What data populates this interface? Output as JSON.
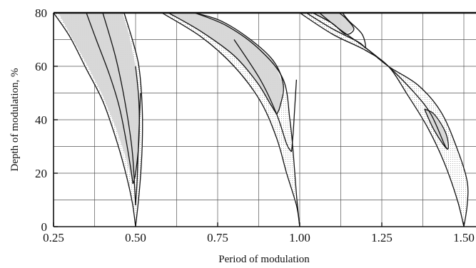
{
  "chart_data": {
    "type": "area",
    "title": "",
    "xlabel": "Period of modulation",
    "ylabel": "Depth of modulation, %",
    "xlim": [
      0.25,
      1.5
    ],
    "ylim": [
      0,
      80
    ],
    "x_ticks": [
      0.25,
      0.5,
      0.75,
      1.0,
      1.25,
      1.5
    ],
    "x_tick_labels": [
      "0.25",
      "0.50",
      "0.75",
      "1.00",
      "1.25",
      "1.50"
    ],
    "y_ticks": [
      0,
      20,
      40,
      60,
      80
    ],
    "y_tick_labels": [
      "0",
      "20",
      "40",
      "60",
      "80"
    ],
    "grid": true,
    "colors": {
      "shaded": "#d6d6d6",
      "dotted": "#f1f1f1",
      "line": "#111111"
    },
    "regions": [
      {
        "shade": "light",
        "points": [
          [
            0.25,
            80
          ],
          [
            0.3,
            71
          ],
          [
            0.35,
            59
          ],
          [
            0.4,
            47
          ],
          [
            0.44,
            33
          ],
          [
            0.47,
            20
          ],
          [
            0.49,
            9
          ],
          [
            0.5,
            0
          ],
          [
            0.512,
            14
          ],
          [
            0.52,
            30
          ],
          [
            0.52,
            45
          ],
          [
            0.51,
            60
          ],
          [
            0.49,
            70
          ],
          [
            0.465,
            80
          ]
        ]
      },
      {
        "shade": "dark",
        "points": [
          [
            0.265,
            80
          ],
          [
            0.3,
            72
          ],
          [
            0.35,
            61
          ],
          [
            0.4,
            49
          ],
          [
            0.44,
            37
          ],
          [
            0.47,
            26
          ],
          [
            0.485,
            19
          ],
          [
            0.492,
            16
          ],
          [
            0.5,
            20
          ],
          [
            0.51,
            32
          ],
          [
            0.51,
            47
          ],
          [
            0.5,
            60
          ],
          [
            0.48,
            72
          ],
          [
            0.46,
            80
          ]
        ]
      },
      {
        "shade": "light",
        "points": [
          [
            0.58,
            80
          ],
          [
            0.7,
            71
          ],
          [
            0.8,
            60
          ],
          [
            0.88,
            47
          ],
          [
            0.93,
            33
          ],
          [
            0.96,
            20
          ],
          [
            0.99,
            8
          ],
          [
            1.0,
            0
          ],
          [
            0.99,
            12
          ],
          [
            0.98,
            28
          ],
          [
            0.97,
            40
          ],
          [
            0.95,
            55
          ],
          [
            0.88,
            66
          ],
          [
            0.78,
            75
          ],
          [
            0.68,
            80
          ]
        ]
      },
      {
        "shade": "dark",
        "points": [
          [
            0.6,
            80
          ],
          [
            0.7,
            73
          ],
          [
            0.8,
            64
          ],
          [
            0.87,
            54
          ],
          [
            0.91,
            46
          ],
          [
            0.93,
            42
          ],
          [
            0.94,
            45
          ],
          [
            0.95,
            53
          ],
          [
            0.92,
            62
          ],
          [
            0.85,
            70
          ],
          [
            0.76,
            77
          ],
          [
            0.68,
            80
          ]
        ]
      },
      {
        "shade": "light",
        "points": [
          [
            1.0,
            80
          ],
          [
            1.1,
            72
          ],
          [
            1.2,
            66
          ],
          [
            1.27,
            60
          ],
          [
            1.33,
            49
          ],
          [
            1.39,
            37
          ],
          [
            1.44,
            24
          ],
          [
            1.48,
            10
          ],
          [
            1.5,
            0
          ],
          [
            1.51,
            8
          ],
          [
            1.51,
            17
          ],
          [
            1.48,
            29
          ],
          [
            1.43,
            43
          ],
          [
            1.36,
            53
          ],
          [
            1.27,
            60
          ],
          [
            1.2,
            67
          ],
          [
            1.12,
            74
          ],
          [
            1.06,
            80
          ]
        ]
      },
      {
        "shade": "dark",
        "points": [
          [
            1.04,
            80
          ],
          [
            1.1,
            76
          ],
          [
            1.14,
            72
          ],
          [
            1.165,
            74
          ],
          [
            1.14,
            78
          ],
          [
            1.12,
            80
          ]
        ]
      },
      {
        "shade": "dark",
        "points": [
          [
            1.38,
            44
          ],
          [
            1.41,
            36
          ],
          [
            1.45,
            29
          ],
          [
            1.445,
            35
          ],
          [
            1.41,
            42
          ]
        ]
      }
    ],
    "curves": [
      {
        "points": [
          [
            0.25,
            80
          ],
          [
            0.3,
            71
          ],
          [
            0.35,
            59
          ],
          [
            0.4,
            47
          ],
          [
            0.44,
            33
          ],
          [
            0.47,
            20
          ],
          [
            0.49,
            9
          ],
          [
            0.5,
            0
          ]
        ]
      },
      {
        "points": [
          [
            0.465,
            80
          ],
          [
            0.49,
            70
          ],
          [
            0.51,
            60
          ],
          [
            0.52,
            45
          ],
          [
            0.52,
            30
          ],
          [
            0.512,
            14
          ],
          [
            0.5,
            0
          ]
        ]
      },
      {
        "points": [
          [
            0.35,
            80
          ],
          [
            0.38,
            70
          ],
          [
            0.42,
            57
          ],
          [
            0.45,
            45
          ],
          [
            0.47,
            33
          ],
          [
            0.485,
            22
          ],
          [
            0.492,
            16
          ]
        ]
      },
      {
        "points": [
          [
            0.492,
            16
          ],
          [
            0.5,
            20
          ],
          [
            0.51,
            32
          ],
          [
            0.51,
            47
          ],
          [
            0.5,
            60
          ]
        ]
      },
      {
        "points": [
          [
            0.4,
            80
          ],
          [
            0.44,
            63
          ],
          [
            0.47,
            45
          ],
          [
            0.49,
            28
          ],
          [
            0.5,
            8
          ]
        ]
      },
      {
        "points": [
          [
            0.5,
            8
          ],
          [
            0.505,
            18
          ],
          [
            0.51,
            35
          ],
          [
            0.515,
            50
          ]
        ]
      },
      {
        "points": [
          [
            0.58,
            80
          ],
          [
            0.7,
            71
          ],
          [
            0.8,
            60
          ],
          [
            0.88,
            47
          ],
          [
            0.93,
            33
          ],
          [
            0.96,
            20
          ],
          [
            0.99,
            8
          ],
          [
            1.0,
            0
          ]
        ]
      },
      {
        "points": [
          [
            1.0,
            0
          ],
          [
            0.99,
            12
          ],
          [
            0.98,
            28
          ],
          [
            0.97,
            40
          ],
          [
            0.95,
            55
          ],
          [
            0.88,
            66
          ],
          [
            0.78,
            75
          ],
          [
            0.68,
            80
          ]
        ]
      },
      {
        "points": [
          [
            0.6,
            80
          ],
          [
            0.7,
            73
          ],
          [
            0.8,
            64
          ],
          [
            0.87,
            54
          ],
          [
            0.91,
            46
          ],
          [
            0.93,
            42
          ]
        ]
      },
      {
        "points": [
          [
            0.93,
            42
          ],
          [
            0.94,
            45
          ],
          [
            0.95,
            53
          ],
          [
            0.92,
            62
          ],
          [
            0.85,
            70
          ],
          [
            0.76,
            77
          ],
          [
            0.68,
            80
          ]
        ]
      },
      {
        "points": [
          [
            0.8,
            70
          ],
          [
            0.88,
            55
          ],
          [
            0.93,
            42
          ],
          [
            0.96,
            31
          ],
          [
            0.975,
            28
          ]
        ]
      },
      {
        "points": [
          [
            0.975,
            28
          ],
          [
            0.98,
            35
          ],
          [
            0.985,
            45
          ],
          [
            0.99,
            55
          ]
        ]
      },
      {
        "points": [
          [
            1.0,
            80
          ],
          [
            1.1,
            72
          ],
          [
            1.2,
            66
          ],
          [
            1.27,
            60
          ],
          [
            1.33,
            49
          ],
          [
            1.39,
            37
          ],
          [
            1.44,
            24
          ],
          [
            1.48,
            10
          ],
          [
            1.5,
            0
          ]
        ]
      },
      {
        "points": [
          [
            1.5,
            0
          ],
          [
            1.51,
            8
          ],
          [
            1.51,
            17
          ],
          [
            1.48,
            29
          ],
          [
            1.43,
            43
          ],
          [
            1.36,
            53
          ],
          [
            1.27,
            60
          ],
          [
            1.2,
            67
          ],
          [
            1.12,
            74
          ],
          [
            1.06,
            80
          ]
        ]
      },
      {
        "points": [
          [
            1.04,
            80
          ],
          [
            1.1,
            76
          ],
          [
            1.14,
            72
          ],
          [
            1.165,
            74
          ],
          [
            1.14,
            78
          ],
          [
            1.12,
            80
          ]
        ]
      },
      {
        "points": [
          [
            1.02,
            80
          ],
          [
            1.1,
            74
          ],
          [
            1.18,
            69
          ],
          [
            1.2,
            67
          ],
          [
            1.19,
            72
          ],
          [
            1.15,
            77
          ],
          [
            1.13,
            80
          ]
        ]
      },
      {
        "points": [
          [
            1.2,
            67
          ],
          [
            1.27,
            60
          ],
          [
            1.35,
            50
          ],
          [
            1.4,
            42
          ],
          [
            1.44,
            31
          ],
          [
            1.45,
            29
          ]
        ]
      },
      {
        "points": [
          [
            1.38,
            44
          ],
          [
            1.41,
            36
          ],
          [
            1.45,
            29
          ],
          [
            1.445,
            35
          ],
          [
            1.41,
            42
          ],
          [
            1.38,
            44
          ]
        ]
      }
    ]
  }
}
